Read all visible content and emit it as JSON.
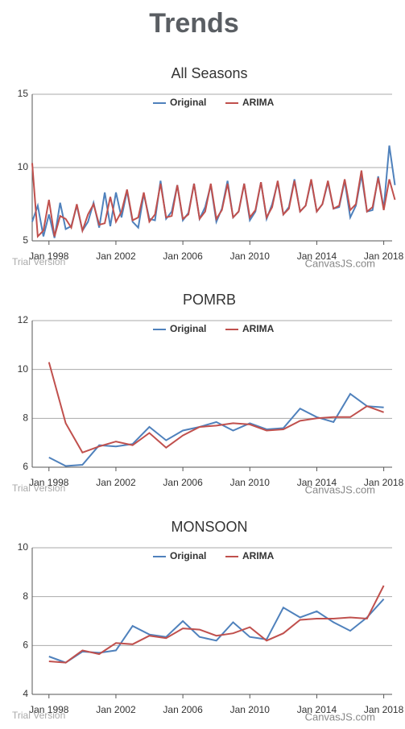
{
  "title": "Trends",
  "chart_data": [
    {
      "type": "line",
      "title": "All Seasons",
      "watermark": "Trial Version",
      "credit": "CanvasJS.com",
      "x": [
        "1997-01",
        "1997-05",
        "1997-09",
        "1998-01",
        "1998-05",
        "1998-09",
        "1999-01",
        "1999-05",
        "1999-09",
        "2000-01",
        "2000-05",
        "2000-09",
        "2001-01",
        "2001-05",
        "2001-09",
        "2002-01",
        "2002-05",
        "2002-09",
        "2003-01",
        "2003-05",
        "2003-09",
        "2004-01",
        "2004-05",
        "2004-09",
        "2005-01",
        "2005-05",
        "2005-09",
        "2006-01",
        "2006-05",
        "2006-09",
        "2007-01",
        "2007-05",
        "2007-09",
        "2008-01",
        "2008-05",
        "2008-09",
        "2009-01",
        "2009-05",
        "2009-09",
        "2010-01",
        "2010-05",
        "2010-09",
        "2011-01",
        "2011-05",
        "2011-09",
        "2012-01",
        "2012-05",
        "2012-09",
        "2013-01",
        "2013-05",
        "2013-09",
        "2014-01",
        "2014-05",
        "2014-09",
        "2015-01",
        "2015-05",
        "2015-09",
        "2016-01",
        "2016-05",
        "2016-09",
        "2017-01",
        "2017-05",
        "2017-09",
        "2018-01",
        "2018-05",
        "2018-09"
      ],
      "series": [
        {
          "name": "Original",
          "color": "#4f81bc",
          "values": [
            6.3,
            7.4,
            5.3,
            6.8,
            5.2,
            7.6,
            5.8,
            6.0,
            7.4,
            5.7,
            6.3,
            7.6,
            5.9,
            8.3,
            6.0,
            8.3,
            6.6,
            8.4,
            6.3,
            5.9,
            8.2,
            6.5,
            6.4,
            9.1,
            6.5,
            7.0,
            8.8,
            6.4,
            6.9,
            8.9,
            6.5,
            7.3,
            8.8,
            6.3,
            7.2,
            9.1,
            6.6,
            7.0,
            8.9,
            6.4,
            7.0,
            9.0,
            6.5,
            7.5,
            9.0,
            6.8,
            7.3,
            9.2,
            7.0,
            7.4,
            9.1,
            7.0,
            7.5,
            9.0,
            7.2,
            7.3,
            9.1,
            6.6,
            7.4,
            9.5,
            7.0,
            7.1,
            9.4,
            7.2,
            11.5,
            8.8
          ]
        },
        {
          "name": "ARIMA",
          "color": "#c0504d",
          "values": [
            10.3,
            5.3,
            5.7,
            7.8,
            5.3,
            6.7,
            6.5,
            5.9,
            7.5,
            5.7,
            6.8,
            7.5,
            6.1,
            6.2,
            8.0,
            6.3,
            7.0,
            8.5,
            6.4,
            6.6,
            8.3,
            6.3,
            6.8,
            8.9,
            6.6,
            6.7,
            8.8,
            6.5,
            6.8,
            8.9,
            6.5,
            7.0,
            8.9,
            6.5,
            7.1,
            8.9,
            6.6,
            7.0,
            8.9,
            6.6,
            7.1,
            9.0,
            6.6,
            7.3,
            9.1,
            6.8,
            7.2,
            9.1,
            7.0,
            7.4,
            9.2,
            7.0,
            7.5,
            9.1,
            7.2,
            7.4,
            9.2,
            7.1,
            7.5,
            9.8,
            7.0,
            7.3,
            9.3,
            7.1,
            9.2,
            7.8
          ]
        }
      ],
      "xlim": [
        "1997-01",
        "2018-07"
      ],
      "xticks": [
        {
          "value": "1998-01",
          "label": "Jan 1998"
        },
        {
          "value": "2002-01",
          "label": "Jan 2002"
        },
        {
          "value": "2006-01",
          "label": "Jan 2006"
        },
        {
          "value": "2010-01",
          "label": "Jan 2010"
        },
        {
          "value": "2014-01",
          "label": "Jan 2014"
        },
        {
          "value": "2018-01",
          "label": "Jan 2018"
        }
      ],
      "ylim": [
        5,
        15
      ],
      "yticks": [
        5,
        10,
        15
      ],
      "grid": true,
      "legend": "top"
    },
    {
      "type": "line",
      "title": "POMRB",
      "watermark": "Trial Version",
      "credit": "CanvasJS.com",
      "x": [
        "1998-01",
        "1999-01",
        "2000-01",
        "2001-01",
        "2002-01",
        "2003-01",
        "2004-01",
        "2005-01",
        "2006-01",
        "2007-01",
        "2008-01",
        "2009-01",
        "2010-01",
        "2011-01",
        "2012-01",
        "2013-01",
        "2014-01",
        "2015-01",
        "2016-01",
        "2017-01",
        "2018-01"
      ],
      "series": [
        {
          "name": "Original",
          "color": "#4f81bc",
          "values": [
            6.4,
            6.05,
            6.1,
            6.9,
            6.85,
            6.95,
            7.65,
            7.1,
            7.5,
            7.65,
            7.85,
            7.5,
            7.8,
            7.55,
            7.6,
            8.4,
            8.05,
            7.85,
            9.0,
            8.5,
            8.45
          ]
        },
        {
          "name": "ARIMA",
          "color": "#c0504d",
          "values": [
            10.3,
            7.8,
            6.6,
            6.85,
            7.05,
            6.9,
            7.4,
            6.8,
            7.3,
            7.65,
            7.7,
            7.8,
            7.75,
            7.5,
            7.55,
            7.9,
            8.0,
            8.05,
            8.05,
            8.5,
            8.25
          ]
        }
      ],
      "xlim": [
        "1997-01",
        "2018-07"
      ],
      "xticks": [
        {
          "value": "1998-01",
          "label": "Jan 1998"
        },
        {
          "value": "2002-01",
          "label": "Jan 2002"
        },
        {
          "value": "2006-01",
          "label": "Jan 2006"
        },
        {
          "value": "2010-01",
          "label": "Jan 2010"
        },
        {
          "value": "2014-01",
          "label": "Jan 2014"
        },
        {
          "value": "2018-01",
          "label": "Jan 2018"
        }
      ],
      "ylim": [
        6,
        12
      ],
      "yticks": [
        6,
        8,
        10,
        12
      ],
      "grid": true,
      "legend": "top"
    },
    {
      "type": "line",
      "title": "MONSOON",
      "watermark": "Trial Version",
      "credit": "CanvasJS.com",
      "x": [
        "1998-01",
        "1999-01",
        "2000-01",
        "2001-01",
        "2002-01",
        "2003-01",
        "2004-01",
        "2005-01",
        "2006-01",
        "2007-01",
        "2008-01",
        "2009-01",
        "2010-01",
        "2011-01",
        "2012-01",
        "2013-01",
        "2014-01",
        "2015-01",
        "2016-01",
        "2017-01",
        "2018-01"
      ],
      "series": [
        {
          "name": "Original",
          "color": "#4f81bc",
          "values": [
            5.55,
            5.3,
            5.75,
            5.7,
            5.8,
            6.8,
            6.45,
            6.35,
            7.0,
            6.35,
            6.2,
            6.95,
            6.35,
            6.25,
            7.55,
            7.15,
            7.4,
            6.95,
            6.6,
            7.15,
            7.9
          ]
        },
        {
          "name": "ARIMA",
          "color": "#c0504d",
          "values": [
            5.35,
            5.3,
            5.8,
            5.65,
            6.1,
            6.05,
            6.4,
            6.3,
            6.7,
            6.65,
            6.4,
            6.5,
            6.75,
            6.2,
            6.5,
            7.05,
            7.1,
            7.1,
            7.15,
            7.1,
            8.45
          ]
        }
      ],
      "xlim": [
        "1997-01",
        "2018-07"
      ],
      "xticks": [
        {
          "value": "1998-01",
          "label": "Jan 1998"
        },
        {
          "value": "2002-01",
          "label": "Jan 2002"
        },
        {
          "value": "2006-01",
          "label": "Jan 2006"
        },
        {
          "value": "2010-01",
          "label": "Jan 2010"
        },
        {
          "value": "2014-01",
          "label": "Jan 2014"
        },
        {
          "value": "2018-01",
          "label": "Jan 2018"
        }
      ],
      "ylim": [
        4,
        10
      ],
      "yticks": [
        4,
        6,
        8,
        10
      ],
      "grid": true,
      "legend": "top"
    }
  ]
}
